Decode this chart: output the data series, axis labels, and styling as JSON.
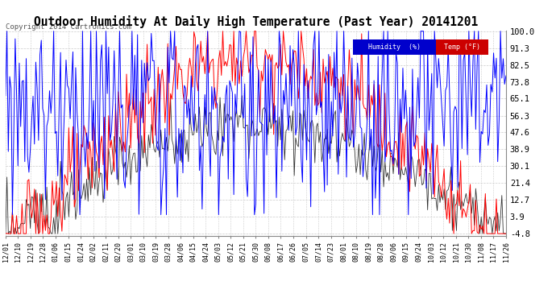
{
  "title": "Outdoor Humidity At Daily High Temperature (Past Year) 20141201",
  "copyright_text": "Copyright 2014 Cartronics.com",
  "yticks": [
    100.0,
    91.3,
    82.5,
    73.8,
    65.1,
    56.3,
    47.6,
    38.9,
    30.1,
    21.4,
    12.7,
    3.9,
    -4.8
  ],
  "ylim": [
    -4.8,
    100.0
  ],
  "xtick_labels": [
    "12/01",
    "12/10",
    "12/19",
    "12/28",
    "01/06",
    "01/15",
    "01/24",
    "02/02",
    "02/11",
    "02/20",
    "03/01",
    "03/10",
    "03/19",
    "03/28",
    "04/06",
    "04/15",
    "04/24",
    "05/03",
    "05/12",
    "05/21",
    "05/30",
    "06/08",
    "06/17",
    "06/26",
    "07/05",
    "07/14",
    "07/23",
    "08/01",
    "08/10",
    "08/19",
    "08/28",
    "09/06",
    "09/15",
    "09/24",
    "10/03",
    "10/12",
    "10/21",
    "10/30",
    "11/08",
    "11/17",
    "11/26"
  ],
  "background_color": "#ffffff",
  "grid_color": "#cccccc",
  "title_fontsize": 10.5,
  "legend_humidity_color": "#0000cc",
  "legend_temp_color": "#cc0000",
  "humidity_line_color": "#0000ff",
  "temp_line_color": "#ff0000",
  "dew_line_color": "#333333"
}
